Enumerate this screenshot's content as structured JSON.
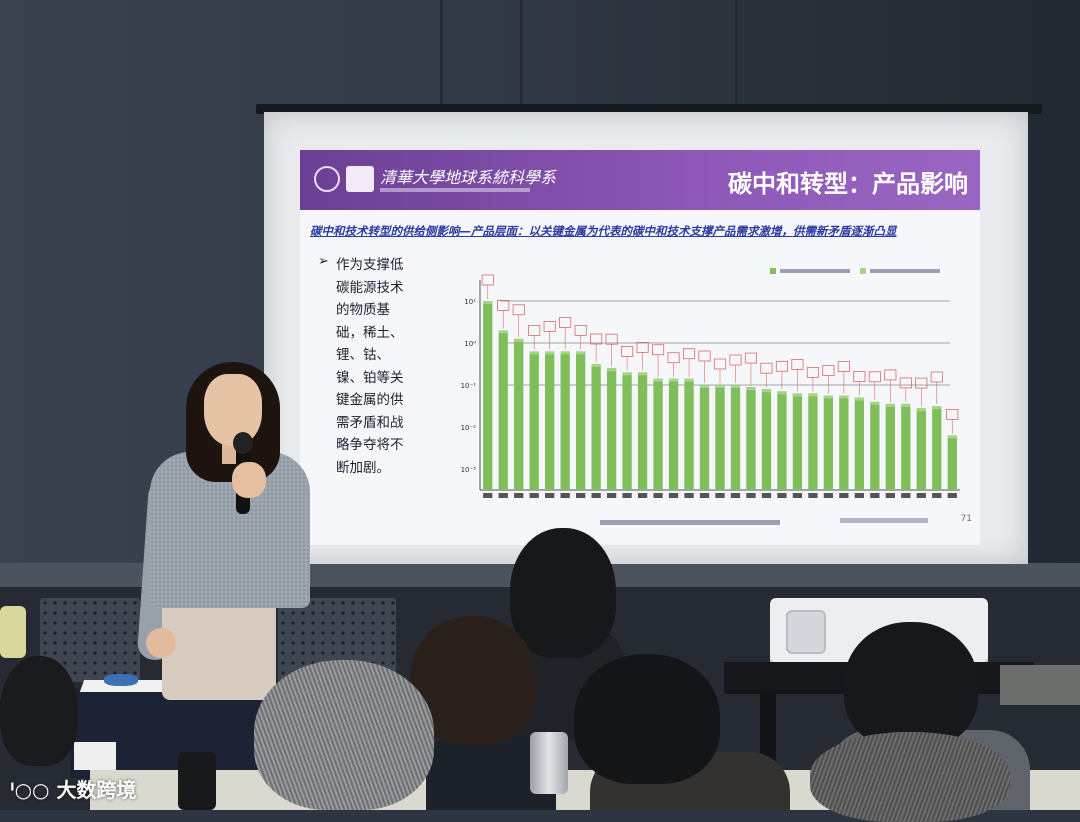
{
  "slide": {
    "institution": "清華大學地球系統科學系",
    "title": "碳中和转型：产品影响",
    "subtitle": "碳中和技术转型的供给侧影响—产品层面：以关键金属为代表的碳中和技术支撑产品需求激增，供需新矛盾逐渐凸显",
    "bullet_lines": [
      "作为支撑低",
      "碳能源技术",
      "的物质基",
      "础，稀土、",
      "锂、钴、",
      "镍、铂等关",
      "键金属的供",
      "需矛盾和战",
      "略争夺将不",
      "断加剧。"
    ],
    "page_number": "71"
  },
  "chart_data": {
    "type": "bar",
    "title": "",
    "xlabel": "",
    "ylabel": "",
    "scale": "log",
    "y_ticks": [
      "10¹",
      "10⁰",
      "10⁻¹",
      "10⁻²",
      "10⁻³"
    ],
    "ylim_exp": [
      -3.5,
      1.5
    ],
    "values_exp": [
      1.0,
      0.3,
      0.1,
      -0.2,
      -0.2,
      -0.2,
      -0.2,
      -0.5,
      -0.6,
      -0.7,
      -0.7,
      -0.85,
      -0.85,
      -0.85,
      -1.0,
      -1.0,
      -1.0,
      -1.05,
      -1.1,
      -1.15,
      -1.2,
      -1.2,
      -1.25,
      -1.25,
      -1.3,
      -1.4,
      -1.45,
      -1.45,
      -1.55,
      -1.5,
      -2.2
    ],
    "colors": {
      "bar": "#7fbe5a",
      "bar_top": "#a8d48a",
      "marker": "#d96b6b",
      "line": "#555555"
    }
  },
  "watermark": "大数跨境"
}
